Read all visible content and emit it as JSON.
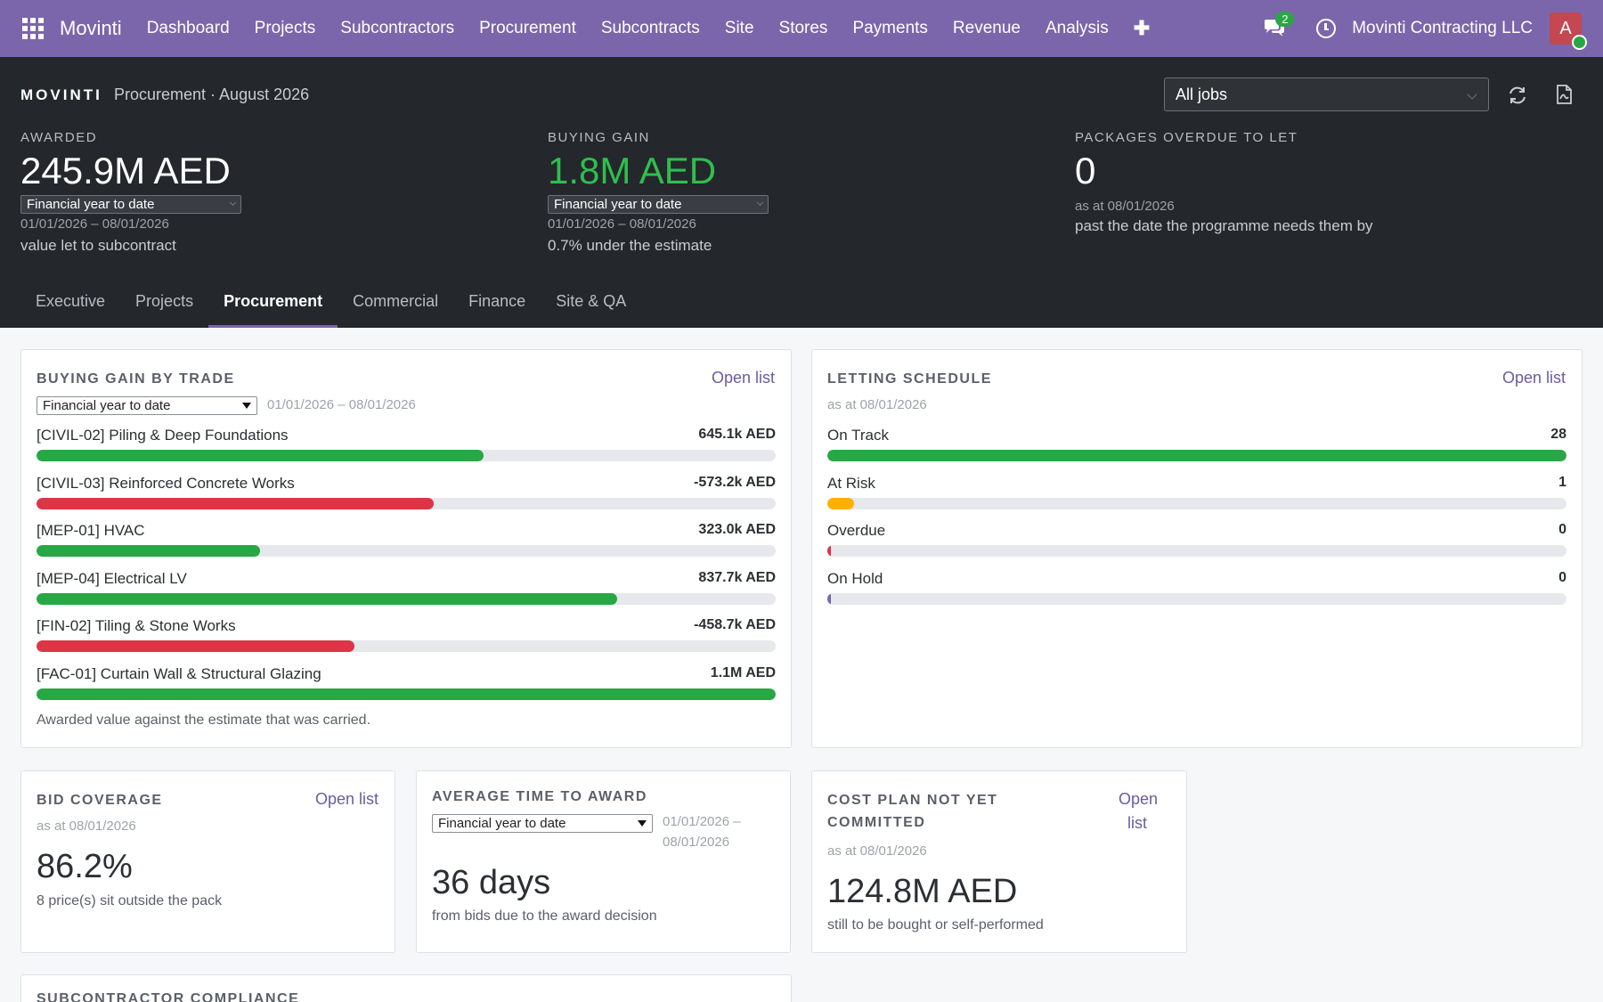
{
  "navbar": {
    "brand": "Movinti",
    "menu": [
      "Dashboard",
      "Projects",
      "Subcontractors",
      "Procurement",
      "Subcontracts",
      "Site",
      "Stores",
      "Payments",
      "Revenue",
      "Analysis"
    ],
    "chat_count": "2",
    "company": "Movinti Contracting LLC",
    "avatar_initial": "A",
    "accent_color": "#7b66ab"
  },
  "header": {
    "logo": "MOVINTI",
    "subtitle": "Procurement · August 2026",
    "job_filter": "All jobs",
    "kpis": [
      {
        "label": "AWARDED",
        "value": "245.9M AED",
        "period": "Financial year to date",
        "dates": "01/01/2026 – 08/01/2026",
        "note": "value let to subcontract"
      },
      {
        "label": "BUYING GAIN",
        "value": "1.8M AED",
        "period": "Financial year to date",
        "dates": "01/01/2026 – 08/01/2026",
        "note": "0.7% under the estimate"
      },
      {
        "label": "PACKAGES OVERDUE TO LET",
        "value": "0",
        "dates": "as at 08/01/2026",
        "note": "past the date the programme needs them by"
      }
    ],
    "tabs": [
      "Executive",
      "Projects",
      "Procurement",
      "Commercial",
      "Finance",
      "Site & QA"
    ],
    "active_tab": "Procurement"
  },
  "buying_gain": {
    "title": "BUYING GAIN BY TRADE",
    "open_list": "Open list",
    "period": "Financial year to date",
    "dates": "01/01/2026 – 08/01/2026",
    "rows": [
      {
        "name": "[CIVIL-02] Piling & Deep Foundations",
        "value": "645.1k AED",
        "fraction": 0.605,
        "status": "positive"
      },
      {
        "name": "[CIVIL-03] Reinforced Concrete Works",
        "value": "-573.2k AED",
        "fraction": 0.537,
        "status": "negative"
      },
      {
        "name": "[MEP-01] HVAC",
        "value": "323.0k AED",
        "fraction": 0.302,
        "status": "positive"
      },
      {
        "name": "[MEP-04] Electrical LV",
        "value": "837.7k AED",
        "fraction": 0.785,
        "status": "positive"
      },
      {
        "name": "[FIN-02] Tiling & Stone Works",
        "value": "-458.7k AED",
        "fraction": 0.43,
        "status": "negative"
      },
      {
        "name": "[FAC-01] Curtain Wall & Structural Glazing",
        "value": "1.1M AED",
        "fraction": 1.0,
        "status": "positive"
      }
    ],
    "footer": "Awarded value against the estimate that was carried.",
    "colors": {
      "positive": "#28a745",
      "negative": "#dc3545"
    }
  },
  "letting_schedule": {
    "title": "LETTING SCHEDULE",
    "open_list": "Open list",
    "as_at": "as at 08/01/2026",
    "rows": [
      {
        "name": "On Track",
        "value": "28",
        "fraction": 1.0,
        "color": "#28a745"
      },
      {
        "name": "At Risk",
        "value": "1",
        "fraction": 0.036,
        "color": "#ffb000"
      },
      {
        "name": "Overdue",
        "value": "0",
        "fraction": 0.0,
        "color": "#dc3545"
      },
      {
        "name": "On Hold",
        "value": "0",
        "fraction": 0.0,
        "color": "#7b66ab"
      }
    ]
  },
  "bid_coverage": {
    "title": "BID COVERAGE",
    "open_list": "Open list",
    "as_at": "as at 08/01/2026",
    "value": "86.2%",
    "note": "8 price(s) sit outside the pack"
  },
  "avg_time": {
    "title": "AVERAGE TIME TO AWARD",
    "period": "Financial year to date",
    "dates_line1": "01/01/2026 –",
    "dates_line2": "08/01/2026",
    "value": "36 days",
    "note": "from bids due to the award decision"
  },
  "cost_plan": {
    "title_line1": "COST PLAN NOT YET",
    "title_line2": "COMMITTED",
    "open_line1": "Open",
    "open_line2": "list",
    "as_at": "as at 08/01/2026",
    "value": "124.8M AED",
    "note": "still to be bought or self-performed"
  },
  "compliance": {
    "title": "SUBCONTRACTOR COMPLIANCE"
  }
}
